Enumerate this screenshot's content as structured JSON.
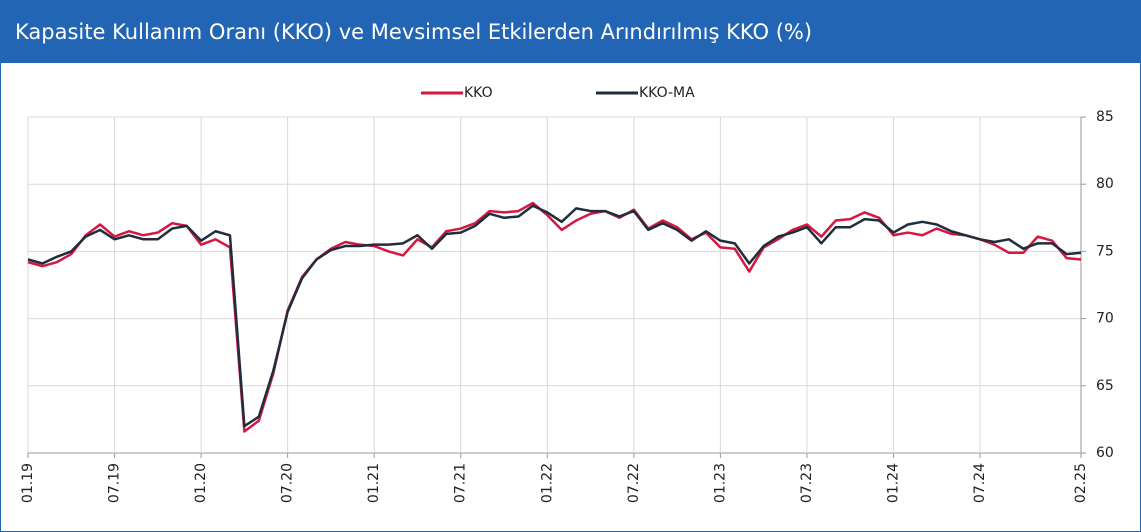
{
  "chart_data": {
    "type": "line",
    "title": "Kapasite Kullanım Oranı (KKO) ve Mevsimsel Etkilerden Arındırılmış KKO (%)",
    "categories": [
      "01.19",
      null,
      null,
      null,
      null,
      null,
      "07.19",
      null,
      null,
      null,
      null,
      null,
      "01.20",
      null,
      null,
      null,
      null,
      null,
      "07.20",
      null,
      null,
      null,
      null,
      null,
      "01.21",
      null,
      null,
      null,
      null,
      null,
      "07.21",
      null,
      null,
      null,
      null,
      null,
      "01.22",
      null,
      null,
      null,
      null,
      null,
      "07.22",
      null,
      null,
      null,
      null,
      null,
      "01.23",
      null,
      null,
      null,
      null,
      null,
      "07.23",
      null,
      null,
      null,
      null,
      null,
      "01.24",
      null,
      null,
      null,
      null,
      null,
      "07.24",
      null,
      null,
      null,
      null,
      null,
      null,
      "02.25"
    ],
    "series": [
      {
        "name": "KKO",
        "color": "#d6173f",
        "values": [
          74.2,
          73.9,
          74.2,
          74.8,
          76.2,
          77.0,
          76.1,
          76.5,
          76.2,
          76.4,
          77.1,
          76.9,
          75.5,
          75.9,
          75.3,
          61.6,
          62.4,
          65.9,
          70.6,
          73.1,
          74.4,
          75.2,
          75.7,
          75.5,
          75.4,
          75.0,
          74.7,
          75.9,
          75.3,
          76.5,
          76.7,
          77.1,
          78.0,
          77.9,
          78.0,
          78.6,
          77.7,
          76.6,
          77.3,
          77.8,
          78.0,
          77.5,
          78.1,
          76.7,
          77.3,
          76.8,
          75.9,
          76.4,
          75.3,
          75.2,
          73.5,
          75.3,
          75.9,
          76.6,
          77.0,
          76.1,
          77.3,
          77.4,
          77.9,
          77.5,
          76.2,
          76.4,
          76.2,
          76.7,
          76.3,
          76.2,
          75.9,
          75.5,
          74.9,
          74.9,
          76.1,
          75.8,
          74.5,
          74.4
        ]
      },
      {
        "name": "KKO-MA",
        "color": "#1f2d3d",
        "values": [
          74.4,
          74.1,
          74.6,
          75.0,
          76.1,
          76.6,
          75.9,
          76.2,
          75.9,
          75.9,
          76.7,
          76.9,
          75.8,
          76.5,
          76.2,
          62.0,
          62.7,
          66.1,
          70.5,
          73.0,
          74.4,
          75.1,
          75.4,
          75.4,
          75.5,
          75.5,
          75.6,
          76.2,
          75.2,
          76.3,
          76.4,
          76.9,
          77.8,
          77.5,
          77.6,
          78.4,
          77.9,
          77.2,
          78.2,
          78.0,
          78.0,
          77.6,
          78.0,
          76.6,
          77.1,
          76.6,
          75.8,
          76.5,
          75.8,
          75.6,
          74.1,
          75.4,
          76.1,
          76.4,
          76.8,
          75.6,
          76.8,
          76.8,
          77.4,
          77.3,
          76.4,
          77.0,
          77.2,
          77.0,
          76.5,
          76.2,
          75.9,
          75.7,
          75.9,
          75.2,
          75.6,
          75.6,
          74.8,
          74.9
        ]
      }
    ],
    "ylim": [
      60,
      85
    ],
    "yticks": [
      60,
      65,
      70,
      75,
      80,
      85
    ],
    "grid": true
  }
}
